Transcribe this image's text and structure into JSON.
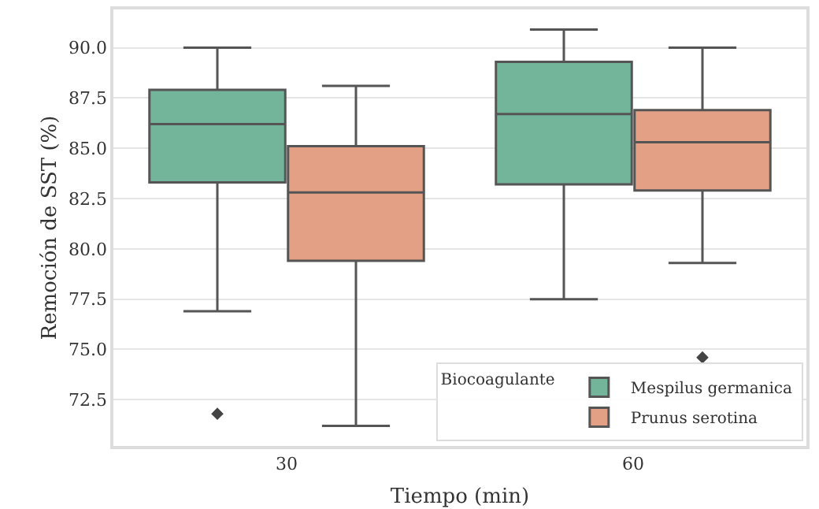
{
  "chart_data": {
    "type": "box",
    "xlabel": "Tiempo (min)",
    "ylabel": "Remoción de SST (%)",
    "legend_title": "Biocoagulante",
    "categories": [
      "30",
      "60"
    ],
    "series": [
      {
        "name": "Mespilus germanica",
        "color": "#72b59b",
        "boxes": [
          {
            "low": 76.9,
            "q1": 83.3,
            "median": 86.2,
            "q3": 87.9,
            "high": 90.0,
            "outliers": [
              71.8
            ]
          },
          {
            "low": 77.5,
            "q1": 83.2,
            "median": 86.7,
            "q3": 89.3,
            "high": 90.9
          }
        ]
      },
      {
        "name": "Prunus serotina",
        "color": "#e3a084",
        "boxes": [
          {
            "low": 71.2,
            "q1": 79.4,
            "median": 82.8,
            "q3": 85.1,
            "high": 88.1
          },
          {
            "low": 79.3,
            "q1": 82.9,
            "median": 85.3,
            "q3": 86.9,
            "high": 90.0,
            "outliers": [
              74.6
            ]
          }
        ]
      }
    ],
    "ylim": [
      70.2,
      91.9
    ],
    "yticks": [
      72.5,
      {
        "value": 75,
        "label": "75.0"
      },
      77.5,
      {
        "value": 80,
        "label": "80.0"
      },
      82.5,
      {
        "value": 85,
        "label": "85.0"
      },
      87.5,
      {
        "value": 90,
        "label": "90.0"
      }
    ],
    "grid": "y",
    "legend": "bottom right"
  }
}
